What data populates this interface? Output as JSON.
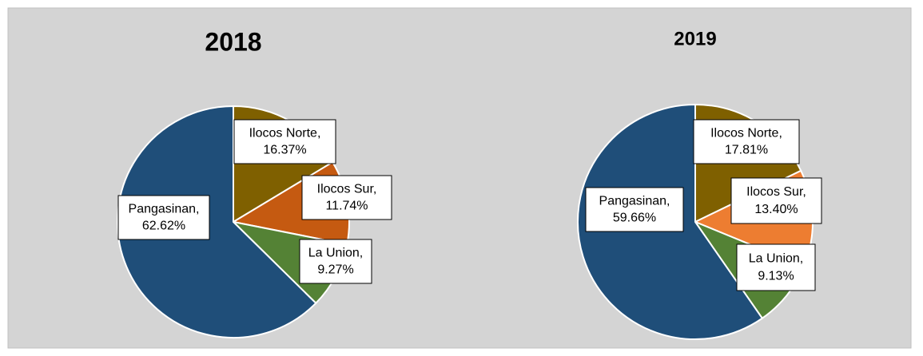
{
  "chart_data": [
    {
      "type": "pie",
      "title": "2018",
      "categories": [
        "Ilocos Norte",
        "Ilocos Sur",
        "La Union",
        "Pangasinan"
      ],
      "values": [
        16.37,
        11.74,
        9.27,
        62.62
      ],
      "value_labels": [
        "16.37%",
        "11.74%",
        "9.27%",
        "62.62%"
      ],
      "colors": [
        "#7f6000",
        "#c55a11",
        "#548235",
        "#1f4e79"
      ]
    },
    {
      "type": "pie",
      "title": "2019",
      "categories": [
        "Ilocos Norte",
        "Ilocos Sur",
        "La Union",
        "Pangasinan"
      ],
      "values": [
        17.81,
        13.4,
        9.13,
        59.66
      ],
      "value_labels": [
        "17.81%",
        "13.40%",
        "9.13%",
        "59.66%"
      ],
      "colors": [
        "#7f6000",
        "#ed7d31",
        "#548235",
        "#1f4e79"
      ]
    }
  ]
}
